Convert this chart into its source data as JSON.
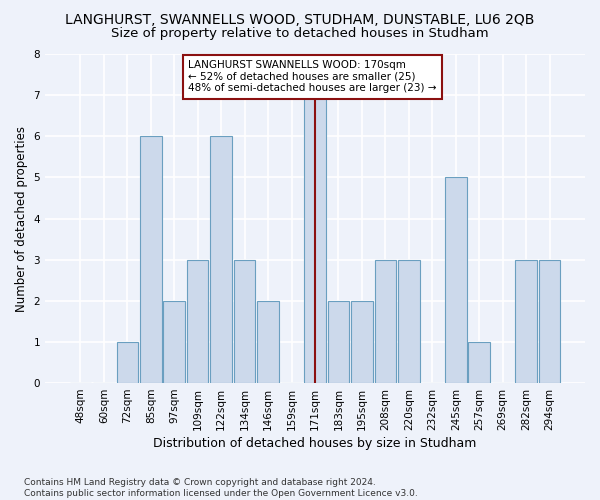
{
  "title": "LANGHURST, SWANNELLS WOOD, STUDHAM, DUNSTABLE, LU6 2QB",
  "subtitle": "Size of property relative to detached houses in Studham",
  "xlabel": "Distribution of detached houses by size in Studham",
  "ylabel": "Number of detached properties",
  "categories": [
    "48sqm",
    "60sqm",
    "72sqm",
    "85sqm",
    "97sqm",
    "109sqm",
    "122sqm",
    "134sqm",
    "146sqm",
    "159sqm",
    "171sqm",
    "183sqm",
    "195sqm",
    "208sqm",
    "220sqm",
    "232sqm",
    "245sqm",
    "257sqm",
    "269sqm",
    "282sqm",
    "294sqm"
  ],
  "values": [
    0,
    0,
    1,
    6,
    2,
    3,
    6,
    3,
    2,
    0,
    7,
    2,
    2,
    3,
    3,
    0,
    5,
    1,
    0,
    3,
    3
  ],
  "bar_color": "#ccd9eb",
  "bar_edge_color": "#6a9fc0",
  "highlight_index": 10,
  "highlight_line_color": "#8b1010",
  "annotation_text": "LANGHURST SWANNELLS WOOD: 170sqm\n← 52% of detached houses are smaller (25)\n48% of semi-detached houses are larger (23) →",
  "annotation_box_color": "white",
  "annotation_box_edge_color": "#8b1010",
  "ylim": [
    0,
    8
  ],
  "yticks": [
    0,
    1,
    2,
    3,
    4,
    5,
    6,
    7,
    8
  ],
  "background_color": "#eef2fa",
  "grid_color": "white",
  "footer": "Contains HM Land Registry data © Crown copyright and database right 2024.\nContains public sector information licensed under the Open Government Licence v3.0.",
  "title_fontsize": 10,
  "subtitle_fontsize": 9.5,
  "xlabel_fontsize": 9,
  "ylabel_fontsize": 8.5,
  "tick_fontsize": 7.5,
  "annotation_fontsize": 7.5,
  "footer_fontsize": 6.5
}
